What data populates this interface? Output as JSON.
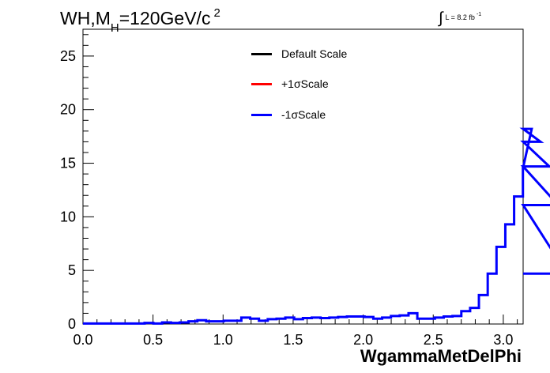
{
  "chart_data": {
    "type": "histogram",
    "title": "WH,M",
    "title_sub": "H",
    "title_rest": "=120GeV/c",
    "title_sup": "2",
    "lumi_label": "L = 8.2 fb",
    "lumi_sup": "-1",
    "xlabel": "WgammaMetDelPhi",
    "ylabel": "",
    "xlim": [
      0,
      3.1416
    ],
    "ylim": [
      0,
      27.5
    ],
    "x_ticks": [
      "0.0",
      "0.5",
      "1.0",
      "1.5",
      "2.0",
      "2.5",
      "3.0"
    ],
    "y_ticks": [
      "0",
      "5",
      "10",
      "15",
      "20",
      "25"
    ],
    "bin_edges_start": 0,
    "bin_width": 0.0628,
    "legend": [
      {
        "name": "Default Scale",
        "color": "#000000"
      },
      {
        "name": "+1σScale",
        "color": "#ff0000"
      },
      {
        "name": "-1σScale",
        "color": "#0000ff"
      }
    ],
    "series": [
      {
        "name": "-1σScale",
        "color": "#0000ff",
        "values": [
          0.05,
          0.05,
          0.05,
          0.05,
          0.05,
          0.05,
          0.05,
          0.1,
          0.05,
          0.15,
          0.1,
          0.15,
          0.25,
          0.35,
          0.25,
          0.25,
          0.3,
          0.3,
          0.6,
          0.5,
          0.3,
          0.45,
          0.5,
          0.6,
          0.45,
          0.55,
          0.6,
          0.55,
          0.6,
          0.65,
          0.7,
          0.7,
          0.65,
          0.5,
          0.6,
          0.75,
          0.8,
          1.0,
          0.5,
          0.5,
          0.6,
          0.7,
          0.75,
          1.2,
          1.5,
          2.7,
          4.7,
          7.2,
          9.3,
          11.9,
          14.6,
          18.2,
          17.0,
          14.7,
          11.1,
          4.7
        ]
      }
    ],
    "grid": false
  }
}
